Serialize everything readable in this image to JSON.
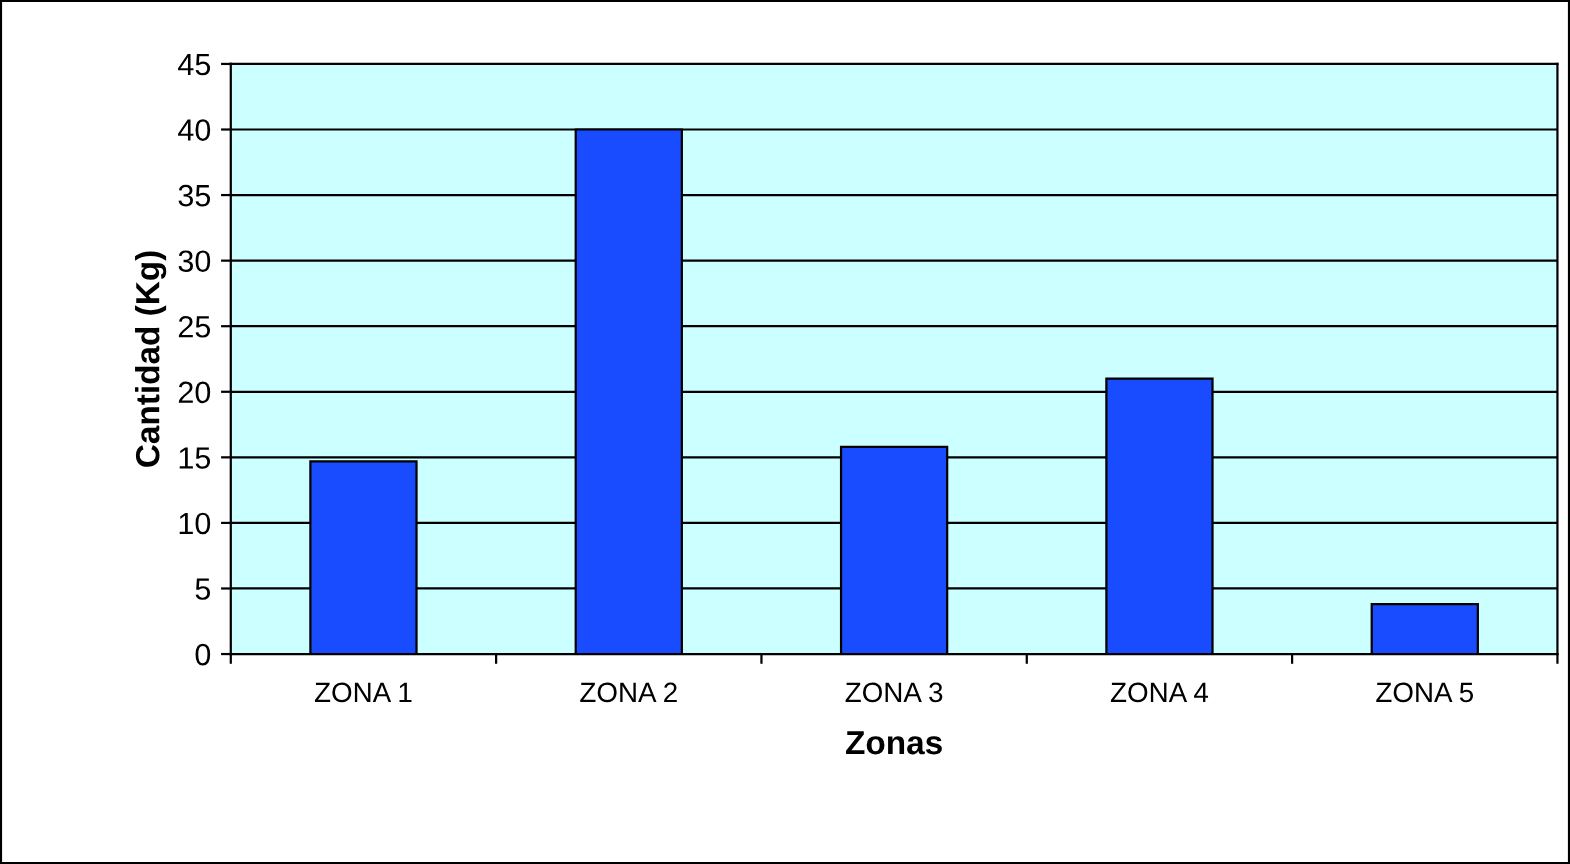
{
  "chart_data": {
    "type": "bar",
    "xlabel": "Zonas",
    "ylabel": "Cantidad (Kg)",
    "categories": [
      "ZONA 1",
      "ZONA 2",
      "ZONA 3",
      "ZONA 4",
      "ZONA 5"
    ],
    "values": [
      14.7,
      40,
      15.8,
      21,
      3.8
    ],
    "color": "#1a4cff",
    "ylim": [
      0,
      45
    ],
    "yticks": [
      0,
      5,
      10,
      15,
      20,
      25,
      30,
      35,
      40,
      45
    ],
    "grid": "y",
    "legend": false
  }
}
